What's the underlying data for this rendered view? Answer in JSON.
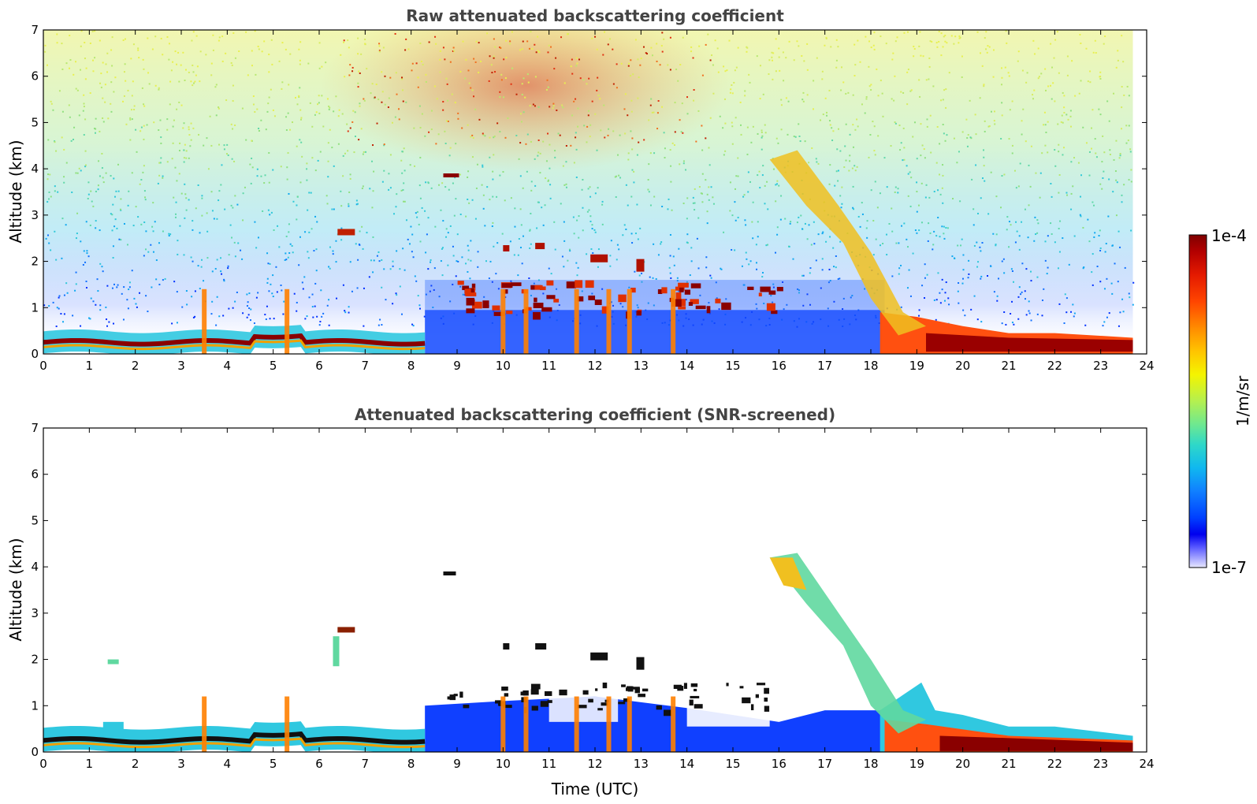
{
  "chart_data": [
    {
      "type": "heatmap",
      "title": "Raw attenuated backscattering coefficient",
      "xlabel": "",
      "ylabel": "Altitude (km)",
      "xlim": [
        0,
        24
      ],
      "ylim": [
        0,
        7
      ],
      "xticks": [
        "0",
        "1",
        "2",
        "3",
        "4",
        "5",
        "6",
        "7",
        "8",
        "9",
        "10",
        "11",
        "12",
        "13",
        "14",
        "15",
        "16",
        "17",
        "18",
        "19",
        "20",
        "21",
        "22",
        "23",
        "24"
      ],
      "yticks": [
        "0",
        "1",
        "2",
        "3",
        "4",
        "5",
        "6",
        "7"
      ],
      "data_end_hour": 23.7,
      "features": [
        {
          "kind": "boundary_layer",
          "start": 0,
          "end": 8.2,
          "altitude_km": 0.25,
          "value": "1e-4"
        },
        {
          "kind": "boundary_layer",
          "start": 18.5,
          "end": 23.7,
          "altitude_km": 0.2,
          "value": "1e-4"
        },
        {
          "kind": "elevated_cloud",
          "time": 8.8,
          "altitude_km": 3.85
        },
        {
          "kind": "elevated_cloud",
          "time": 6.6,
          "altitude_km": 2.6
        },
        {
          "kind": "descending_cloud",
          "start": 15.8,
          "end": 19.2,
          "from_km": 4.3,
          "to_km": 0.5
        }
      ]
    },
    {
      "type": "heatmap",
      "title": "Attenuated backscattering coefficient (SNR-screened)",
      "xlabel": "Time (UTC)",
      "ylabel": "Altitude (km)",
      "xlim": [
        0,
        24
      ],
      "ylim": [
        0,
        7
      ],
      "xticks": [
        "0",
        "1",
        "2",
        "3",
        "4",
        "5",
        "6",
        "7",
        "8",
        "9",
        "10",
        "11",
        "12",
        "13",
        "14",
        "15",
        "16",
        "17",
        "18",
        "19",
        "20",
        "21",
        "22",
        "23",
        "24"
      ],
      "yticks": [
        "0",
        "1",
        "2",
        "3",
        "4",
        "5",
        "6",
        "7"
      ],
      "data_end_hour": 23.7
    }
  ],
  "colorbar": {
    "label": "1/m/sr",
    "max_label": "1e-4",
    "min_label": "1e-7",
    "colors": [
      "#7f0000",
      "#b30000",
      "#e41a00",
      "#ff4500",
      "#ff8c00",
      "#ffc400",
      "#f4f400",
      "#b4f050",
      "#6ee890",
      "#2fd8c8",
      "#10b8ef",
      "#1080ff",
      "#0040ff",
      "#0000ee",
      "#5a5aff",
      "#a0a0ff",
      "#dcdcff"
    ]
  }
}
